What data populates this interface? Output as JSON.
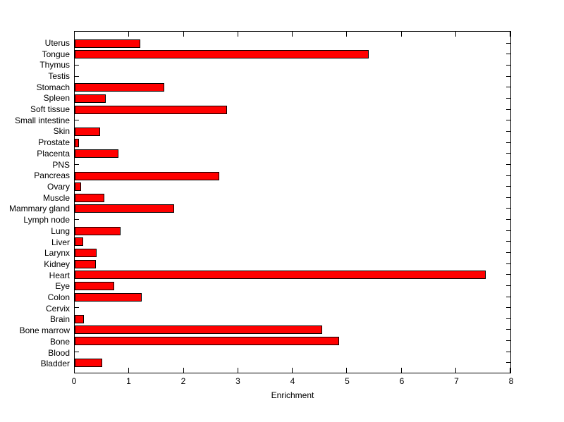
{
  "chart_data": {
    "type": "bar",
    "orientation": "horizontal",
    "title": "",
    "xlabel": "Enrichment",
    "ylabel": "",
    "xlim": [
      0,
      8
    ],
    "x_ticks": [
      0,
      1,
      2,
      3,
      4,
      5,
      6,
      7,
      8
    ],
    "grid": false,
    "legend": false,
    "bar_color": "#FF0000",
    "bar_edge_color": "#000000",
    "background_color": "#FFFFFF",
    "categories": [
      "Uterus",
      "Tongue",
      "Thymus",
      "Testis",
      "Stomach",
      "Spleen",
      "Soft tissue",
      "Small intestine",
      "Skin",
      "Prostate",
      "Placenta",
      "PNS",
      "Pancreas",
      "Ovary",
      "Muscle",
      "Mammary gland",
      "Lymph node",
      "Lung",
      "Liver",
      "Larynx",
      "Kidney",
      "Heart",
      "Eye",
      "Colon",
      "Cervix",
      "Brain",
      "Bone marrow",
      "Bone",
      "Blood",
      "Bladder"
    ],
    "values": [
      1.2,
      5.4,
      0,
      0,
      1.65,
      0.57,
      2.8,
      0,
      0.47,
      0.08,
      0.8,
      0,
      2.65,
      0.12,
      0.55,
      1.82,
      0,
      0.84,
      0.16,
      0.4,
      0.39,
      7.55,
      0.72,
      1.23,
      0,
      0.17,
      4.55,
      4.85,
      0,
      0.5
    ]
  }
}
